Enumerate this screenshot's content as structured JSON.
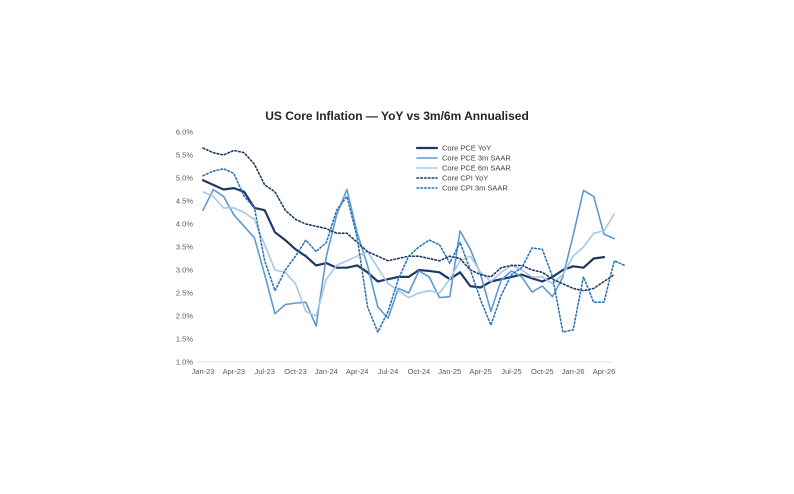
{
  "chart_data": {
    "type": "line",
    "title": "US Core Inflation — YoY vs 3m/6m Annualised",
    "xlabel": "",
    "ylabel": "",
    "ylim": [
      1.0,
      6.0
    ],
    "yticks": [
      "1.0%",
      "1.5%",
      "2.0%",
      "2.5%",
      "3.0%",
      "3.5%",
      "4.0%",
      "4.5%",
      "5.0%",
      "5.5%",
      "6.0%"
    ],
    "ytick_values": [
      1.0,
      1.5,
      2.0,
      2.5,
      3.0,
      3.5,
      4.0,
      4.5,
      5.0,
      5.5,
      6.0
    ],
    "x_labels": [
      "Jan-23",
      "Apr-23",
      "Jul-23",
      "Oct-23",
      "Jan-24",
      "Apr-24",
      "Jul-24",
      "Oct-24",
      "Jan-25",
      "Apr-25",
      "Jul-25",
      "Oct-25",
      "Jan-26",
      "Apr-26"
    ],
    "x_label_months": [
      "2023-01",
      "2023-04",
      "2023-07",
      "2023-10",
      "2024-01",
      "2024-04",
      "2024-07",
      "2024-10",
      "2025-01",
      "2025-04",
      "2025-07",
      "2025-10",
      "2026-01",
      "2026-04"
    ],
    "x_start": "2023-01",
    "grid": false,
    "legend_position": "top-right",
    "series": [
      {
        "name": "Core PCE YoY",
        "color": "#1f3864",
        "style": "solid-thick",
        "x_start": "2023-01",
        "values": [
          4.95,
          4.85,
          4.75,
          4.78,
          4.7,
          4.35,
          4.3,
          3.82,
          3.65,
          3.45,
          3.3,
          3.1,
          3.15,
          3.05,
          3.05,
          3.1,
          2.95,
          2.75,
          2.8,
          2.85,
          2.85,
          3.0,
          2.98,
          2.95,
          2.8,
          2.95,
          2.65,
          2.62,
          2.75,
          2.8,
          2.85,
          2.9,
          2.82,
          2.75,
          2.85,
          3.0,
          3.08,
          3.05,
          3.25,
          3.28
        ]
      },
      {
        "name": "Core PCE 3m SAAR",
        "color": "#5b9bd5",
        "style": "solid",
        "x_start": "2023-01",
        "values": [
          4.3,
          4.75,
          4.6,
          4.2,
          3.95,
          3.7,
          2.9,
          2.05,
          2.25,
          2.28,
          2.3,
          1.78,
          3.3,
          4.2,
          4.75,
          3.8,
          3.1,
          2.2,
          1.95,
          2.6,
          2.5,
          2.98,
          2.85,
          2.4,
          2.42,
          3.85,
          3.45,
          2.9,
          2.1,
          2.78,
          2.98,
          2.85,
          2.52,
          2.65,
          2.42,
          2.85,
          3.75,
          4.73,
          4.6,
          3.78,
          3.68
        ]
      },
      {
        "name": "Core PCE 6m SAAR",
        "color": "#a9c8e8",
        "style": "solid",
        "x_start": "2023-01",
        "values": [
          4.7,
          4.6,
          4.35,
          4.35,
          4.25,
          4.1,
          3.55,
          3.0,
          2.95,
          2.7,
          2.1,
          2.0,
          2.8,
          3.1,
          3.2,
          3.3,
          3.4,
          3.05,
          2.7,
          2.55,
          2.4,
          2.5,
          2.55,
          2.5,
          2.8,
          3.2,
          3.3,
          2.95,
          2.75,
          2.95,
          3.1,
          3.0,
          2.85,
          2.85,
          2.7,
          2.9,
          3.3,
          3.5,
          3.8,
          3.85,
          4.22
        ]
      },
      {
        "name": "Core CPI YoY",
        "color": "#1f3864",
        "style": "dotted",
        "x_start": "2023-01",
        "values": [
          5.65,
          5.55,
          5.5,
          5.6,
          5.55,
          5.3,
          4.85,
          4.7,
          4.3,
          4.1,
          4.0,
          3.95,
          3.9,
          3.8,
          3.8,
          3.6,
          3.4,
          3.3,
          3.2,
          3.25,
          3.3,
          3.3,
          3.25,
          3.2,
          3.3,
          3.25,
          3.0,
          2.9,
          2.85,
          3.05,
          3.1,
          3.1,
          3.0,
          2.95,
          2.8,
          2.7,
          2.6,
          2.55,
          2.6,
          2.75,
          2.9
        ]
      },
      {
        "name": "Core CPI 3m SAAR",
        "color": "#2e75b6",
        "style": "dotted",
        "x_start": "2023-01",
        "values": [
          5.05,
          5.15,
          5.2,
          5.1,
          4.6,
          4.35,
          3.2,
          2.55,
          3.0,
          3.3,
          3.65,
          3.4,
          3.6,
          4.3,
          4.6,
          3.7,
          2.2,
          1.65,
          2.1,
          2.8,
          3.3,
          3.5,
          3.65,
          3.55,
          3.15,
          3.6,
          3.0,
          2.35,
          1.8,
          2.45,
          2.9,
          3.05,
          3.48,
          3.45,
          2.85,
          1.65,
          1.7,
          2.85,
          2.3,
          2.3,
          3.2,
          3.1
        ]
      }
    ]
  }
}
